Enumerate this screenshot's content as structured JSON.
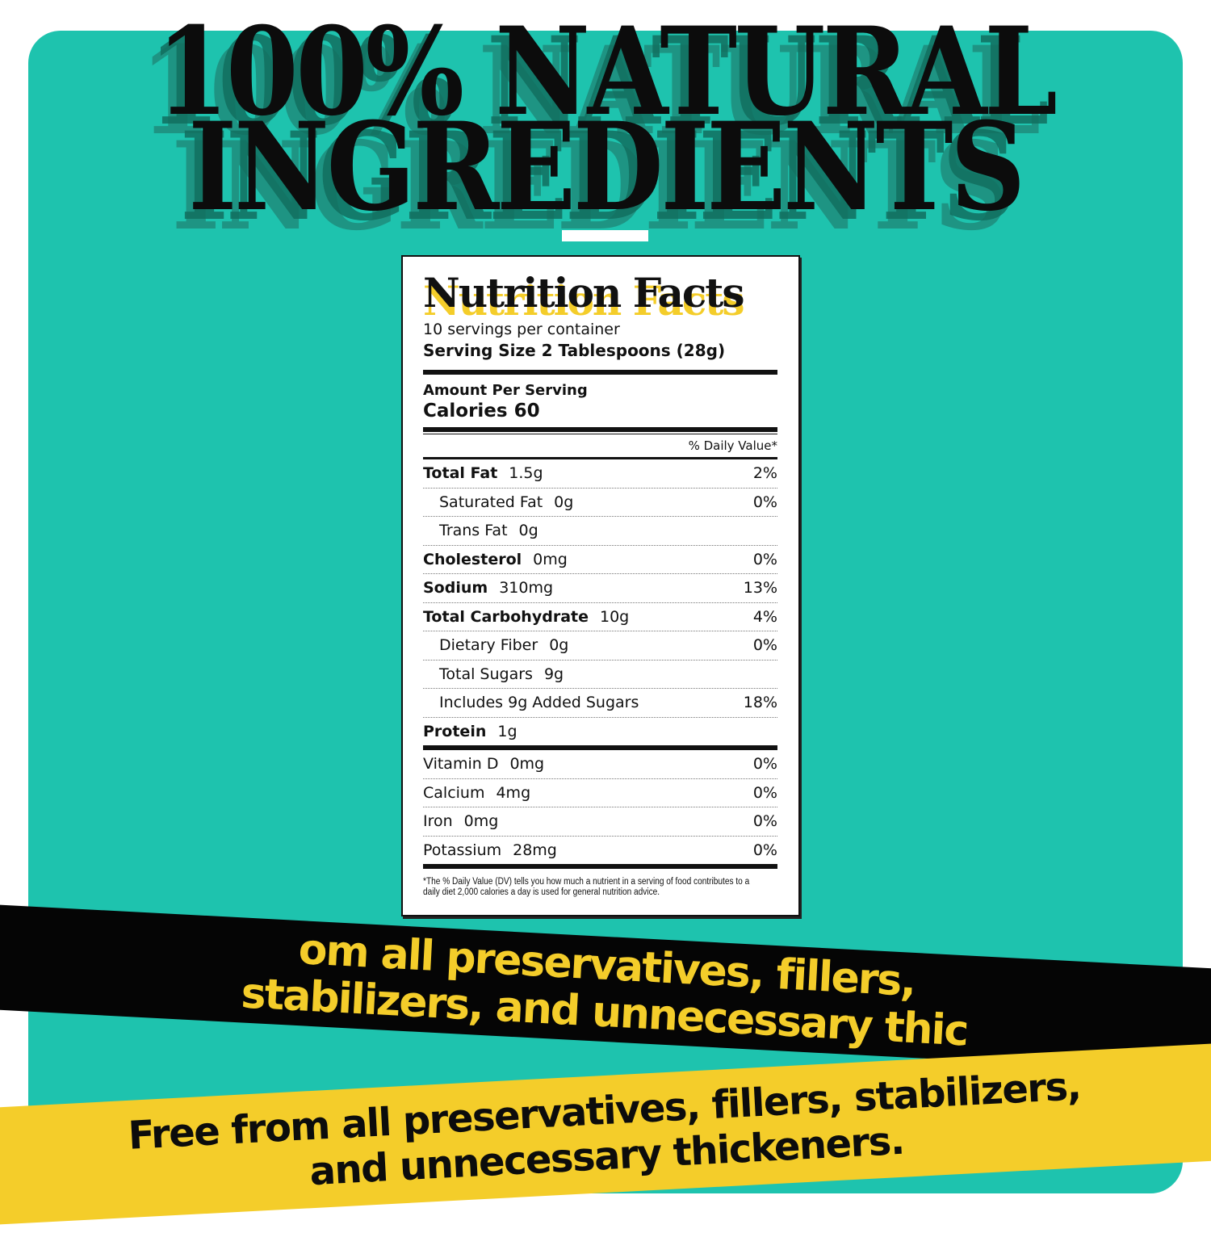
{
  "headline": {
    "line1": "100% NATURAL",
    "line2": "INGREDIENTS"
  },
  "colors": {
    "background_card": "#1ec3ae",
    "accent_yellow": "#f4cd2a",
    "ribbon_black": "#050505"
  },
  "nutrition": {
    "title": "Nutrition Facts",
    "servings": "10 servings per container",
    "serving_size": "Serving Size  2 Tablespoons (28g)",
    "amount_per_serving": "Amount Per Serving",
    "calories": "Calories 60",
    "daily_value_header": "% Daily Value*",
    "rows": [
      {
        "name": "Total Fat",
        "amount": "1.5g",
        "dv": "2%"
      },
      {
        "name": "Saturated Fat",
        "amount": "0g",
        "dv": "0%"
      },
      {
        "name": "Trans Fat",
        "amount": "0g",
        "dv": ""
      },
      {
        "name": "Cholesterol",
        "amount": "0mg",
        "dv": "0%"
      },
      {
        "name": "Sodium",
        "amount": "310mg",
        "dv": "13%"
      },
      {
        "name": "Total Carbohydrate",
        "amount": "10g",
        "dv": "4%"
      },
      {
        "name": "Dietary Fiber",
        "amount": "0g",
        "dv": "0%"
      },
      {
        "name": "Total Sugars",
        "amount": "9g",
        "dv": ""
      },
      {
        "name": "Includes 9g Added Sugars",
        "amount": "",
        "dv": "18%"
      },
      {
        "name": "Protein",
        "amount": "1g",
        "dv": ""
      }
    ],
    "vitamins": [
      {
        "name": "Vitamin D",
        "amount": "0mg",
        "dv": "0%"
      },
      {
        "name": "Calcium",
        "amount": "4mg",
        "dv": "0%"
      },
      {
        "name": "Iron",
        "amount": "0mg",
        "dv": "0%"
      },
      {
        "name": "Potassium",
        "amount": "28mg",
        "dv": "0%"
      }
    ],
    "footnote": "*The % Daily Value (DV) tells you how much a nutrient in a serving of food contributes to a daily diet 2,000 calories a day is used for general nutrition advice."
  },
  "ribbons": {
    "black_text": "om all preservatives, fillers, stabilizers, and unnecessary thic",
    "yellow_line1": "Free from all preservatives, fillers, stabilizers,",
    "yellow_line2": "and unnecessary thickeners."
  }
}
